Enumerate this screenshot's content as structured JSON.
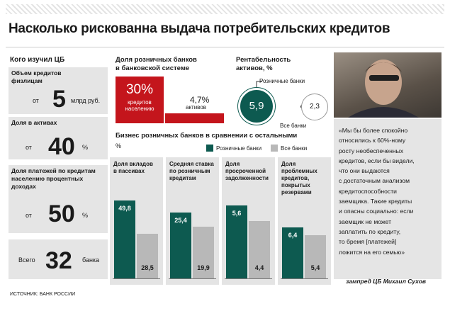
{
  "title": "Насколько рискованна выдача потребительских кредитов",
  "left": {
    "heading": "Кого изучил ЦБ",
    "credits": {
      "label_l1": "Объем кредитов",
      "label_l2": "физлицам",
      "prefix": "от",
      "value": "5",
      "unit": "млрд руб."
    },
    "assets": {
      "label": "Доля в активах",
      "prefix": "от",
      "value": "40",
      "unit": "%"
    },
    "payments": {
      "label_l1": "Доля платежей по кредитам",
      "label_l2": "населению процентных",
      "label_l3": "доходах",
      "prefix": "от",
      "value": "50",
      "unit": "%"
    },
    "total": {
      "prefix": "Всего",
      "value": "32",
      "unit": "банка"
    }
  },
  "share": {
    "heading_l1": "Доля розничных банков",
    "heading_l2": "в банковской системе",
    "loans_value": "30%",
    "loans_label_l1": "кредитов",
    "loans_label_l2": "населению",
    "assets_value": "4,7%",
    "assets_label": "активов"
  },
  "profitability": {
    "heading_l1": "Рентабельность",
    "heading_l2": "активов, %",
    "retail_label": "Розничные банки",
    "retail_value": "5,9",
    "all_label": "Все банки",
    "all_value": "2,3"
  },
  "business": {
    "heading": "Бизнес розничных банков в сравнении с остальными",
    "unit": "%",
    "legend_retail": "Розничные банки",
    "legend_all": "Все банки"
  },
  "colors": {
    "retail": "#0d5a50",
    "all": "#b8b8b8",
    "accent": "#c4151c"
  },
  "chart_data": {
    "type": "bar",
    "categories": [
      "Доля вкладов в пассивах",
      "Средняя ставка по розничным кредитам",
      "Доля просроченной задолженности",
      "Доля проблемных кредитов, покрытых резервами"
    ],
    "category_lines": [
      [
        "Доля вкладов",
        "в пассивах"
      ],
      [
        "Средняя ставка",
        "по розничным",
        "кредитам"
      ],
      [
        "Доля",
        "просроченной",
        "задолженности"
      ],
      [
        "Доля",
        "проблемных",
        "кредитов,",
        "покрытых",
        "резервами"
      ]
    ],
    "series": [
      {
        "name": "Розничные банки",
        "values": [
          49.8,
          25.4,
          5.6,
          6.4
        ],
        "labels": [
          "49,8",
          "25,4",
          "5,6",
          "6,4"
        ]
      },
      {
        "name": "Все банки",
        "values": [
          28.5,
          19.9,
          4.4,
          5.4
        ],
        "labels": [
          "28,5",
          "19,9",
          "4,4",
          "5,4"
        ]
      }
    ]
  },
  "quote_l1": "«Мы бы более спокойно",
  "quote_l2": "относились к 60%-ному",
  "quote_l3": "росту необеспеченных",
  "quote_l4": "кредитов, если бы видели,",
  "quote_l5": "что они выдаются",
  "quote_l6": "с достаточным анализом",
  "quote_l7": "кредитоспособности",
  "quote_l8": "заемщика. Такие кредиты",
  "quote_l9": "и опасны социально: если",
  "quote_l10": "заемщик не может",
  "quote_l11": "заплатить по кредиту,",
  "quote_l12": "то бремя [платежей]",
  "quote_l13": "ложится на его семью»",
  "author": "зампред ЦБ Михаил Сухов",
  "source": "ИСТОЧНИК: БАНК РОССИИ"
}
